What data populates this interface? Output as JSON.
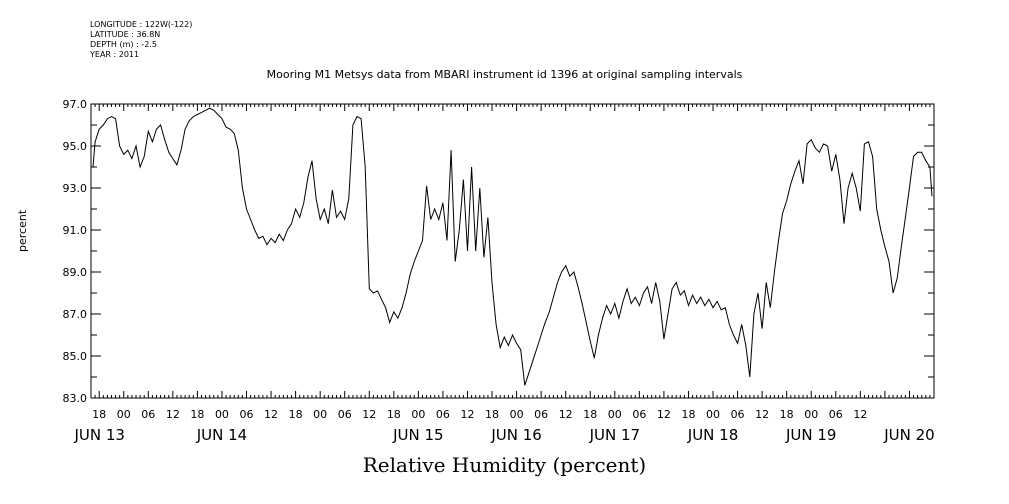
{
  "meta": {
    "longitude": "LONGITUDE : 122W(-122)",
    "latitude": "LATITUDE : 36.8N",
    "depth": "DEPTH (m) : -2.5",
    "year": "YEAR : 2011"
  },
  "chart_data": {
    "type": "line",
    "title": "Mooring M1 Metsys data from MBARI instrument id 1396 at original sampling intervals",
    "xlabel": "Relative Humidity (percent)",
    "ylabel": "percent",
    "ylim": [
      83.0,
      97.0
    ],
    "y_ticks": [
      "83.0",
      "85.0",
      "87.0",
      "89.0",
      "91.0",
      "93.0",
      "95.0",
      "97.0"
    ],
    "xlim_hours": [
      -8,
      198
    ],
    "x_hour_labels": [
      "18",
      "00",
      "06",
      "12",
      "18",
      "00",
      "06",
      "12",
      "18",
      "00",
      "06",
      "12",
      "18",
      "00",
      "06",
      "12",
      "18",
      "00",
      "06",
      "12",
      "18",
      "00",
      "06",
      "12",
      "18",
      "00",
      "06",
      "12",
      "18",
      "00",
      "06",
      "12"
    ],
    "x_day_labels": [
      "JUN 13",
      "JUN 14",
      "JUN 15",
      "JUN 16",
      "JUN 17",
      "JUN 18",
      "JUN 19",
      "JUN 20"
    ],
    "grid": false,
    "series": [
      {
        "points": [
          [
            -7.5,
            94.0
          ],
          [
            -7.0,
            95.2
          ],
          [
            -6.0,
            95.8
          ],
          [
            -5.0,
            96.0
          ],
          [
            -4.0,
            96.3
          ],
          [
            -3.0,
            96.4
          ],
          [
            -2.0,
            96.3
          ],
          [
            -1.0,
            95.0
          ],
          [
            0.0,
            94.6
          ],
          [
            1.0,
            94.8
          ],
          [
            2.0,
            94.4
          ],
          [
            3.0,
            95.0
          ],
          [
            4.0,
            94.0
          ],
          [
            5.0,
            94.5
          ],
          [
            6.0,
            95.7
          ],
          [
            7.0,
            95.2
          ],
          [
            8.0,
            95.8
          ],
          [
            9.0,
            96.0
          ],
          [
            10.0,
            95.3
          ],
          [
            11.0,
            94.7
          ],
          [
            12.0,
            94.4
          ],
          [
            13.0,
            94.1
          ],
          [
            14.0,
            94.8
          ],
          [
            15.0,
            95.8
          ],
          [
            16.0,
            96.2
          ],
          [
            17.0,
            96.4
          ],
          [
            18.0,
            96.5
          ],
          [
            19.0,
            96.6
          ],
          [
            20.0,
            96.7
          ],
          [
            21.0,
            96.8
          ],
          [
            22.0,
            96.7
          ],
          [
            23.0,
            96.5
          ],
          [
            24.0,
            96.3
          ],
          [
            25.0,
            95.9
          ],
          [
            26.0,
            95.8
          ],
          [
            27.0,
            95.6
          ],
          [
            28.0,
            94.8
          ],
          [
            29.0,
            93.0
          ],
          [
            30.0,
            92.0
          ],
          [
            31.0,
            91.5
          ],
          [
            32.0,
            91.0
          ],
          [
            33.0,
            90.6
          ],
          [
            34.0,
            90.7
          ],
          [
            35.0,
            90.3
          ],
          [
            36.0,
            90.6
          ],
          [
            37.0,
            90.4
          ],
          [
            38.0,
            90.8
          ],
          [
            39.0,
            90.5
          ],
          [
            40.0,
            91.0
          ],
          [
            41.0,
            91.3
          ],
          [
            42.0,
            92.0
          ],
          [
            43.0,
            91.6
          ],
          [
            44.0,
            92.3
          ],
          [
            45.0,
            93.5
          ],
          [
            46.0,
            94.3
          ],
          [
            47.0,
            92.5
          ],
          [
            48.0,
            91.5
          ],
          [
            49.0,
            92.0
          ],
          [
            50.0,
            91.3
          ],
          [
            51.0,
            92.9
          ],
          [
            52.0,
            91.6
          ],
          [
            53.0,
            91.9
          ],
          [
            54.0,
            91.5
          ],
          [
            55.0,
            92.5
          ],
          [
            56.0,
            96.0
          ],
          [
            57.0,
            96.4
          ],
          [
            58.0,
            96.3
          ],
          [
            59.0,
            94.0
          ],
          [
            60.0,
            88.2
          ],
          [
            61.0,
            88.0
          ],
          [
            62.0,
            88.1
          ],
          [
            63.0,
            87.7
          ],
          [
            64.0,
            87.3
          ],
          [
            65.0,
            86.6
          ],
          [
            66.0,
            87.1
          ],
          [
            67.0,
            86.8
          ],
          [
            68.0,
            87.3
          ],
          [
            69.0,
            88.0
          ],
          [
            70.0,
            88.9
          ],
          [
            71.0,
            89.5
          ],
          [
            72.0,
            90.0
          ],
          [
            73.0,
            90.5
          ],
          [
            74.0,
            93.1
          ],
          [
            75.0,
            91.5
          ],
          [
            76.0,
            92.0
          ],
          [
            77.0,
            91.5
          ],
          [
            78.0,
            92.3
          ],
          [
            79.0,
            90.5
          ],
          [
            80.0,
            94.8
          ],
          [
            81.0,
            89.5
          ],
          [
            82.0,
            91.0
          ],
          [
            83.0,
            93.4
          ],
          [
            84.0,
            90.0
          ],
          [
            85.0,
            94.0
          ],
          [
            86.0,
            90.0
          ],
          [
            87.0,
            93.0
          ],
          [
            88.0,
            89.7
          ],
          [
            89.0,
            91.6
          ],
          [
            90.0,
            88.5
          ],
          [
            91.0,
            86.5
          ],
          [
            92.0,
            85.4
          ],
          [
            93.0,
            85.9
          ],
          [
            94.0,
            85.5
          ],
          [
            95.0,
            86.0
          ],
          [
            96.0,
            85.6
          ],
          [
            97.0,
            85.3
          ],
          [
            98.0,
            83.6
          ],
          [
            99.0,
            84.2
          ],
          [
            100.0,
            84.8
          ],
          [
            101.0,
            85.4
          ],
          [
            102.0,
            86.0
          ],
          [
            103.0,
            86.6
          ],
          [
            104.0,
            87.1
          ],
          [
            105.0,
            87.8
          ],
          [
            106.0,
            88.5
          ],
          [
            107.0,
            89.0
          ],
          [
            108.0,
            89.3
          ],
          [
            109.0,
            88.8
          ],
          [
            110.0,
            89.0
          ],
          [
            111.0,
            88.3
          ],
          [
            112.0,
            87.5
          ],
          [
            113.0,
            86.6
          ],
          [
            114.0,
            85.7
          ],
          [
            115.0,
            84.9
          ],
          [
            116.0,
            86.0
          ],
          [
            117.0,
            86.8
          ],
          [
            118.0,
            87.4
          ],
          [
            119.0,
            87.0
          ],
          [
            120.0,
            87.5
          ],
          [
            121.0,
            86.8
          ],
          [
            122.0,
            87.6
          ],
          [
            123.0,
            88.2
          ],
          [
            124.0,
            87.5
          ],
          [
            125.0,
            87.8
          ],
          [
            126.0,
            87.4
          ],
          [
            127.0,
            88.0
          ],
          [
            128.0,
            88.3
          ],
          [
            129.0,
            87.5
          ],
          [
            130.0,
            88.5
          ],
          [
            131.0,
            87.6
          ],
          [
            132.0,
            85.8
          ],
          [
            133.0,
            87.0
          ],
          [
            134.0,
            88.2
          ],
          [
            135.0,
            88.5
          ],
          [
            136.0,
            87.9
          ],
          [
            137.0,
            88.1
          ],
          [
            138.0,
            87.4
          ],
          [
            139.0,
            87.9
          ],
          [
            140.0,
            87.5
          ],
          [
            141.0,
            87.8
          ],
          [
            142.0,
            87.4
          ],
          [
            143.0,
            87.7
          ],
          [
            144.0,
            87.3
          ],
          [
            145.0,
            87.6
          ],
          [
            146.0,
            87.2
          ],
          [
            147.0,
            87.3
          ],
          [
            148.0,
            86.5
          ],
          [
            149.0,
            86.0
          ],
          [
            150.0,
            85.6
          ],
          [
            151.0,
            86.5
          ],
          [
            152.0,
            85.5
          ],
          [
            153.0,
            84.0
          ],
          [
            154.0,
            87.0
          ],
          [
            155.0,
            88.0
          ],
          [
            156.0,
            86.3
          ],
          [
            157.0,
            88.5
          ],
          [
            158.0,
            87.3
          ],
          [
            159.0,
            89.0
          ],
          [
            160.0,
            90.5
          ],
          [
            161.0,
            91.8
          ],
          [
            162.0,
            92.4
          ],
          [
            163.0,
            93.2
          ],
          [
            164.0,
            93.8
          ],
          [
            165.0,
            94.3
          ],
          [
            166.0,
            93.2
          ],
          [
            167.0,
            95.1
          ],
          [
            168.0,
            95.3
          ],
          [
            169.0,
            94.9
          ],
          [
            170.0,
            94.7
          ],
          [
            171.0,
            95.1
          ],
          [
            172.0,
            95.0
          ],
          [
            173.0,
            93.8
          ],
          [
            174.0,
            94.6
          ],
          [
            175.0,
            93.4
          ],
          [
            176.0,
            91.3
          ],
          [
            177.0,
            93.0
          ],
          [
            178.0,
            93.7
          ],
          [
            179.0,
            93.0
          ],
          [
            180.0,
            91.9
          ],
          [
            181.0,
            95.1
          ],
          [
            182.0,
            95.2
          ],
          [
            183.0,
            94.5
          ],
          [
            184.0,
            92.0
          ],
          [
            185.0,
            91.0
          ],
          [
            186.0,
            90.2
          ],
          [
            187.0,
            89.5
          ],
          [
            188.0,
            88.0
          ],
          [
            189.0,
            88.7
          ],
          [
            190.0,
            90.2
          ],
          [
            191.0,
            91.6
          ],
          [
            192.0,
            93.0
          ],
          [
            193.0,
            94.5
          ],
          [
            194.0,
            94.7
          ],
          [
            195.0,
            94.7
          ],
          [
            196.0,
            94.3
          ],
          [
            197.0,
            94.0
          ],
          [
            197.5,
            92.6
          ]
        ]
      }
    ]
  }
}
